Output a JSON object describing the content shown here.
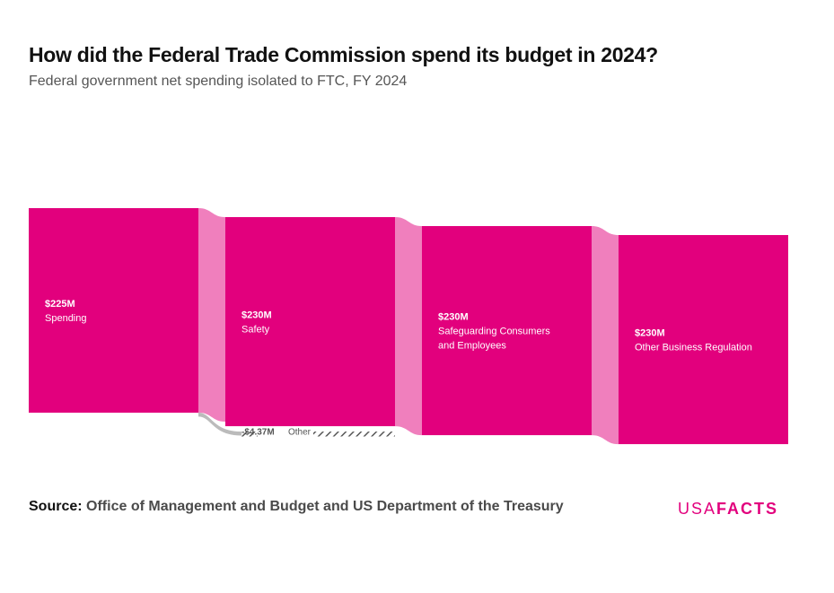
{
  "title": "How did the Federal Trade Commission spend its budget in 2024?",
  "subtitle": "Federal government net spending isolated to FTC, FY 2024",
  "source": {
    "label": "Source:",
    "text": "Office of Management and Budget and US Department of the Treasury"
  },
  "brand": {
    "part1": "USA",
    "part2": "FACTS"
  },
  "colors": {
    "node": "#e2007d",
    "link": "#f07fbd",
    "negative_link": "#bbbbbb",
    "negative_hatch": "#555555"
  },
  "chart_data": {
    "type": "sankey",
    "units": "USD millions",
    "nodes": [
      {
        "value": 225,
        "value_label": "$225M",
        "label_lines": [
          "Spending"
        ]
      },
      {
        "value": 230,
        "value_label": "$230M",
        "label_lines": [
          "Safety"
        ]
      },
      {
        "value": 230,
        "value_label": "$230M",
        "label_lines": [
          "Safeguarding Consumers",
          "and Employees"
        ]
      },
      {
        "value": 230,
        "value_label": "$230M",
        "label_lines": [
          "Other Business Regulation"
        ]
      }
    ],
    "other": {
      "value": -4.37,
      "value_label": "-$4.37M",
      "label": "Other"
    }
  }
}
